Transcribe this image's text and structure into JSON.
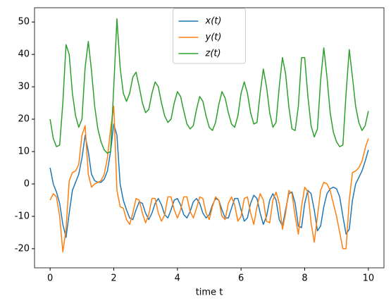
{
  "chart_data": {
    "type": "line",
    "xlabel": "time t",
    "x": [
      0,
      0.1,
      0.2,
      0.3,
      0.4,
      0.5,
      0.6,
      0.7,
      0.8,
      0.9,
      1,
      1.1,
      1.2,
      1.3,
      1.4,
      1.5,
      1.6,
      1.7,
      1.8,
      1.9,
      2,
      2.1,
      2.2,
      2.3,
      2.4,
      2.5,
      2.6,
      2.7,
      2.8,
      2.9,
      3,
      3.1,
      3.2,
      3.3,
      3.4,
      3.5,
      3.6,
      3.7,
      3.8,
      3.9,
      4,
      4.1,
      4.2,
      4.3,
      4.4,
      4.5,
      4.6,
      4.7,
      4.8,
      4.9,
      5,
      5.1,
      5.2,
      5.3,
      5.4,
      5.5,
      5.6,
      5.7,
      5.8,
      5.9,
      6,
      6.1,
      6.2,
      6.3,
      6.4,
      6.5,
      6.6,
      6.7,
      6.8,
      6.9,
      7,
      7.1,
      7.2,
      7.3,
      7.4,
      7.5,
      7.6,
      7.7,
      7.8,
      7.9,
      8,
      8.1,
      8.2,
      8.3,
      8.4,
      8.5,
      8.6,
      8.7,
      8.8,
      8.9,
      9,
      9.1,
      9.2,
      9.3,
      9.4,
      9.5,
      9.6,
      9.7,
      9.8,
      9.9,
      10
    ],
    "series": [
      {
        "name": "x(t)",
        "color": "#1f77b4",
        "values": [
          5,
          0,
          -2.5,
          -6,
          -12.5,
          -16.5,
          -9,
          -2,
          0.5,
          3,
          8,
          15,
          10,
          3,
          1,
          0.5,
          0.5,
          1.5,
          4,
          10,
          18.5,
          15,
          0,
          -5,
          -8,
          -10.5,
          -11,
          -8,
          -5.5,
          -6,
          -9,
          -11,
          -9,
          -6,
          -4.5,
          -6.5,
          -9.5,
          -10.5,
          -8,
          -5,
          -4.5,
          -6.5,
          -9.5,
          -10.5,
          -8.5,
          -5.5,
          -4.5,
          -6,
          -9,
          -10.5,
          -9.5,
          -6.5,
          -4.5,
          -5,
          -8,
          -10.5,
          -10.5,
          -7.5,
          -4.5,
          -4.5,
          -8,
          -11.5,
          -10.5,
          -6,
          -3.5,
          -4.5,
          -9,
          -12.5,
          -10,
          -5,
          -3,
          -5,
          -11,
          -13,
          -8,
          -3,
          -2.5,
          -6,
          -13,
          -13.5,
          -6,
          -2,
          -3,
          -8,
          -14.5,
          -13,
          -7,
          -3,
          -1.5,
          -1,
          -1.5,
          -4,
          -10,
          -15.5,
          -14,
          -5,
          0,
          2,
          4,
          7,
          10.5
        ]
      },
      {
        "name": "y(t)",
        "color": "#ff7f0e",
        "values": [
          -5,
          -3,
          -4,
          -10,
          -21,
          -14,
          1,
          3.5,
          4,
          6,
          15,
          18,
          3,
          -1,
          0,
          0.5,
          1,
          3,
          8,
          17,
          24,
          -2,
          -7,
          -7.5,
          -11,
          -12.5,
          -9,
          -4.5,
          -5,
          -9,
          -12,
          -9.5,
          -4.5,
          -4.5,
          -9,
          -11.5,
          -9.5,
          -4,
          -4,
          -8,
          -10.5,
          -8,
          -4,
          -4,
          -8.5,
          -10.5,
          -7.5,
          -4,
          -4.5,
          -9,
          -11,
          -7,
          -4,
          -5,
          -10,
          -11,
          -6,
          -4,
          -6.5,
          -11.5,
          -10,
          -4.5,
          -4,
          -9,
          -12.5,
          -7,
          -3,
          -5,
          -11.5,
          -12,
          -5,
          -2.5,
          -6,
          -14,
          -9,
          -2,
          -3,
          -10,
          -15.5,
          -7,
          -1,
          -2.5,
          -12,
          -18,
          -10,
          -2,
          0.5,
          0,
          -2,
          -6,
          -10,
          -15,
          -20,
          -20,
          -5,
          3.5,
          4,
          5,
          7,
          11,
          14
        ]
      },
      {
        "name": "z(t)",
        "color": "#2ca02c",
        "values": [
          20,
          14,
          11.5,
          12,
          25,
          43,
          40,
          28,
          21,
          17.5,
          20,
          36,
          44,
          35,
          24,
          17,
          13,
          10.5,
          9.5,
          10,
          30,
          51,
          36,
          28,
          25.5,
          28,
          33,
          34.5,
          30,
          25,
          22,
          23,
          28,
          31.5,
          30,
          25,
          21,
          19,
          20,
          25,
          28.5,
          27,
          22.5,
          18.5,
          17,
          18,
          23,
          27,
          25.5,
          21,
          17.5,
          16.5,
          19,
          24.5,
          28.5,
          26.5,
          22,
          18.5,
          17.5,
          21,
          28,
          31.5,
          28,
          22,
          18.5,
          19,
          28,
          35.5,
          30,
          22,
          17.5,
          19,
          30,
          39,
          34,
          24,
          17,
          16.5,
          24,
          39,
          39,
          27,
          18,
          14.5,
          17,
          32,
          42,
          33,
          22,
          16,
          13,
          11.5,
          12,
          28,
          41.5,
          33,
          24,
          19,
          16.5,
          18,
          22.5
        ]
      }
    ],
    "xlim": [
      -0.49,
      10.49
    ],
    "ylim": [
      -25.9,
      54.4
    ],
    "xticks": [
      0,
      2,
      4,
      6,
      8,
      10
    ],
    "yticks": [
      -20,
      -10,
      0,
      10,
      20,
      30,
      40,
      50
    ],
    "legend": "upper center"
  }
}
